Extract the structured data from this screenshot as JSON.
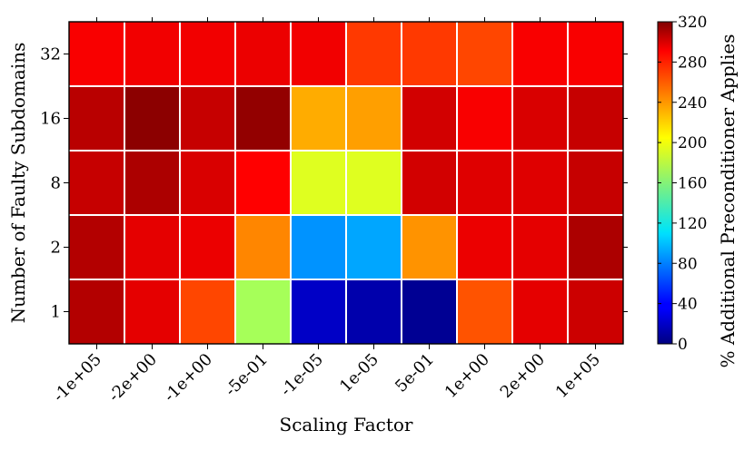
{
  "chart_data": {
    "type": "heatmap",
    "title": "",
    "xlabel": "Scaling Factor",
    "ylabel": "Number of Faulty Subdomains",
    "x_categories": [
      "-1e+05",
      "-2e+00",
      "-1e+00",
      "-5e-01",
      "-1e-05",
      "1e-05",
      "5e-01",
      "1e+00",
      "2e+00",
      "1e+05"
    ],
    "y_categories": [
      "32",
      "16",
      "8",
      "2",
      "1"
    ],
    "values": [
      [
        282,
        284,
        284,
        286,
        284,
        262,
        262,
        258,
        282,
        282
      ],
      [
        302,
        316,
        298,
        314,
        226,
        230,
        294,
        282,
        292,
        298
      ],
      [
        298,
        306,
        292,
        280,
        190,
        190,
        294,
        290,
        290,
        298
      ],
      [
        304,
        288,
        286,
        238,
        86,
        92,
        234,
        286,
        288,
        306
      ],
      [
        304,
        288,
        258,
        172,
        22,
        14,
        6,
        254,
        288,
        296
      ]
    ],
    "colorbar": {
      "label": "% Additional Preconditioner Applies",
      "min": 0,
      "max": 320,
      "ticks": [
        0,
        40,
        80,
        120,
        160,
        200,
        240,
        280,
        320
      ],
      "colormap": "jet"
    },
    "grid": true,
    "gridline_color": "#ffffff"
  }
}
